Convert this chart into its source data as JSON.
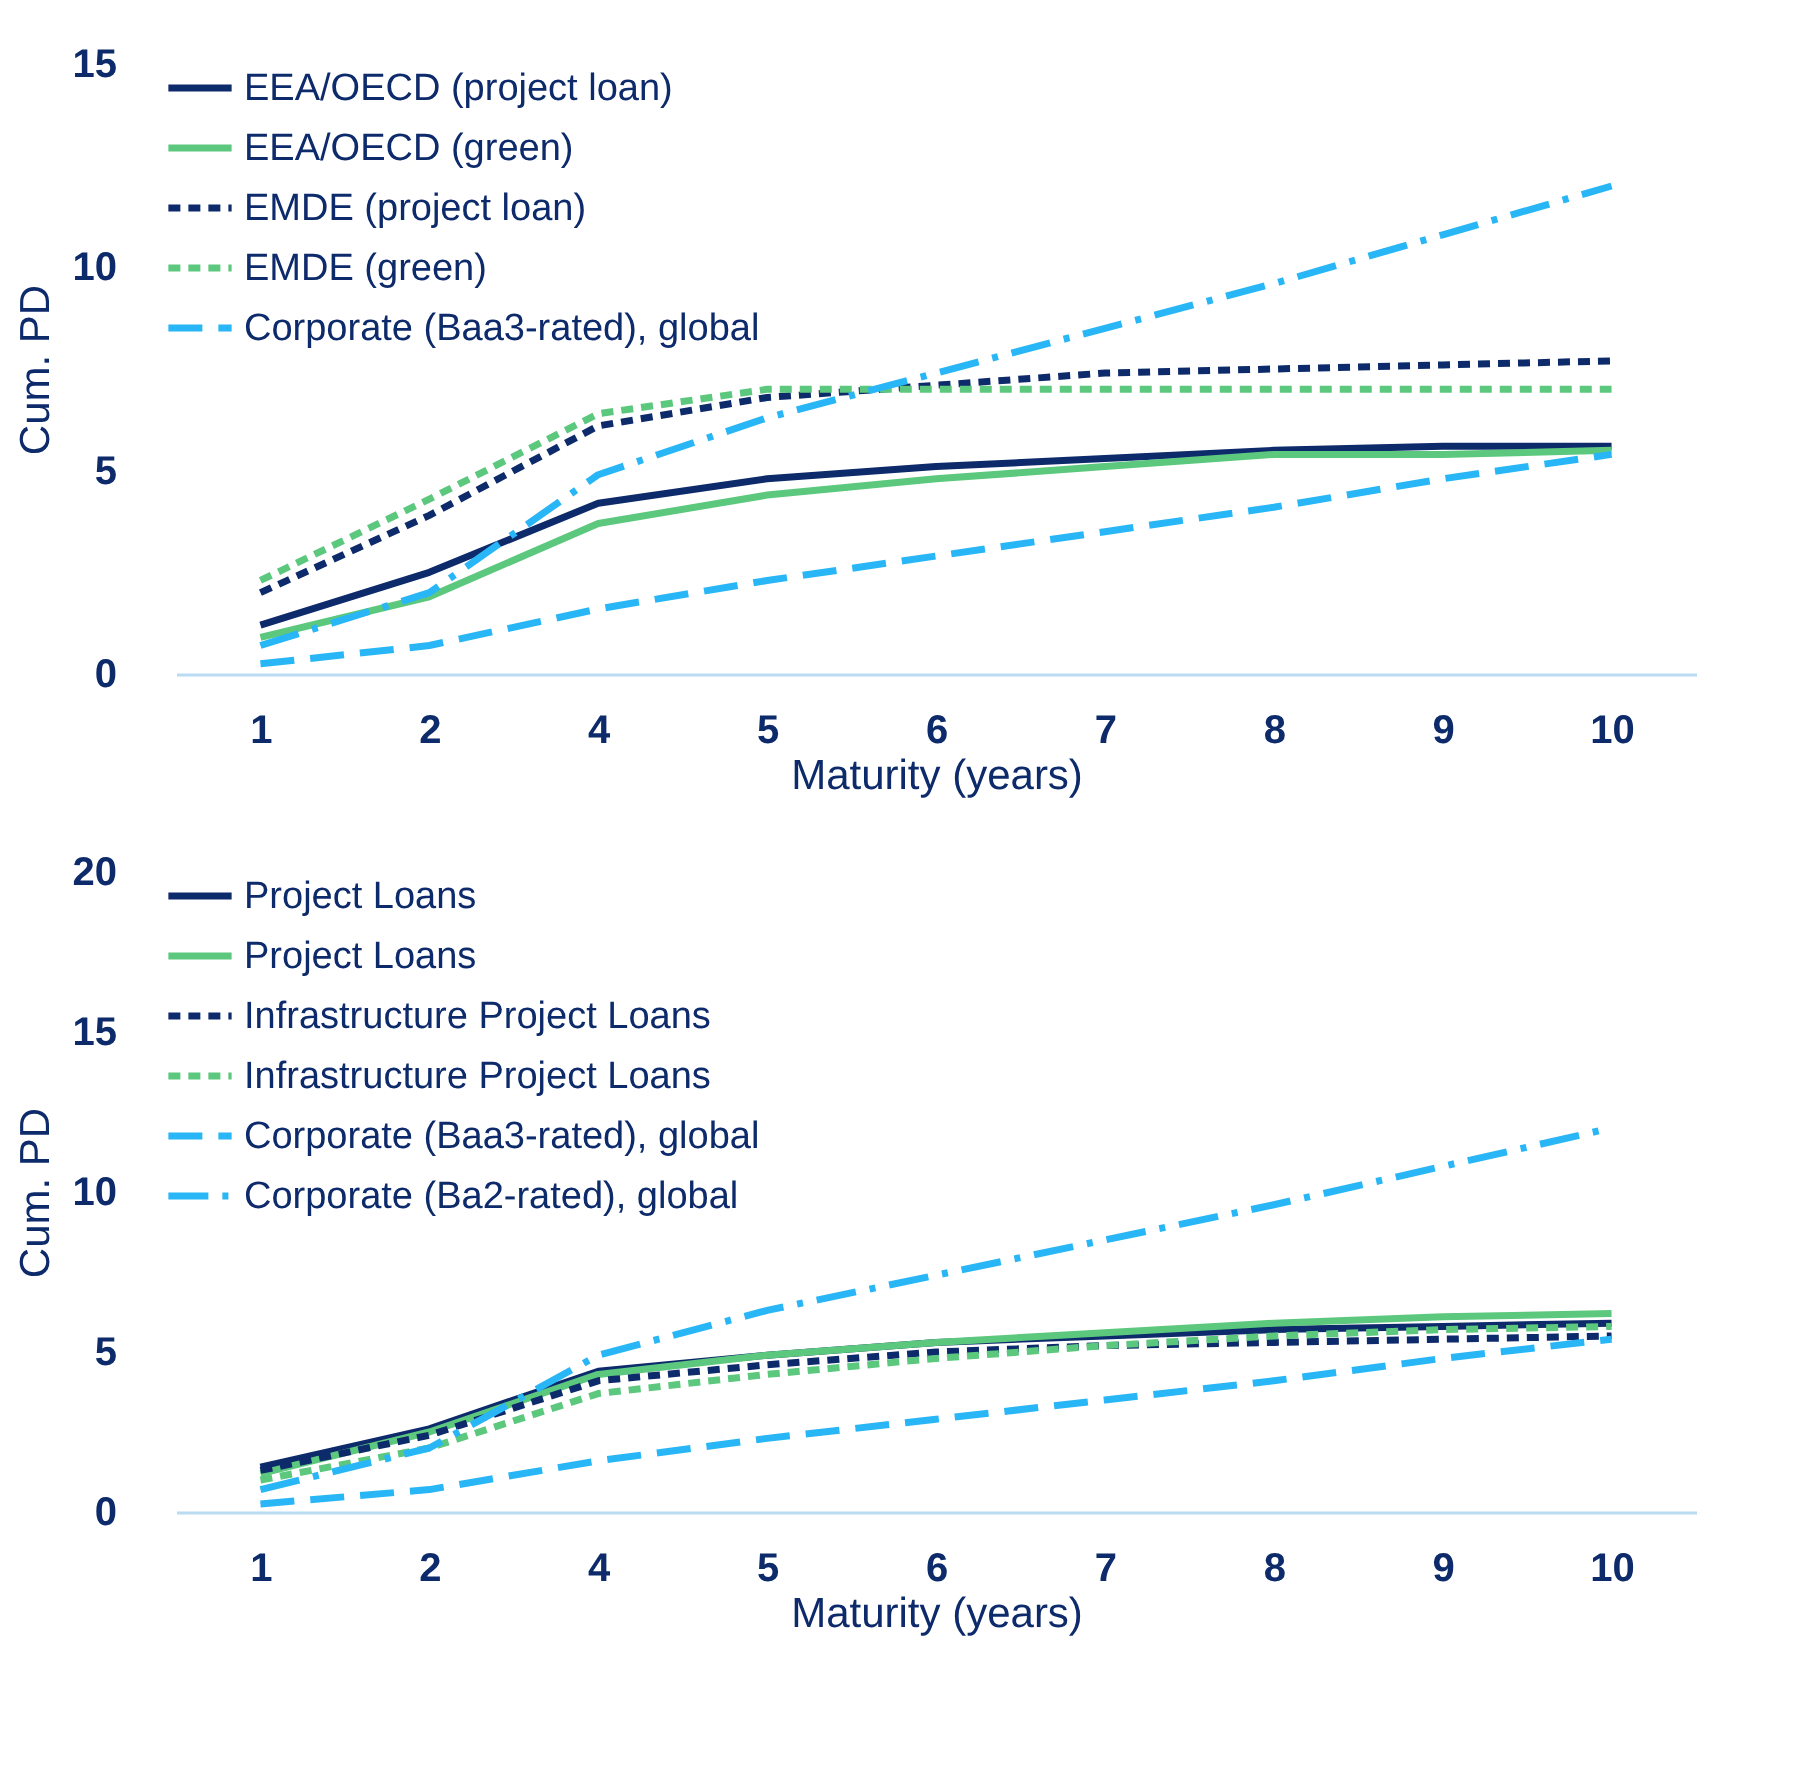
{
  "chart_data": [
    {
      "type": "line",
      "xlabel": "Maturity (years)",
      "ylabel": "Cum. PD",
      "categories": [
        "1",
        "2",
        "4",
        "5",
        "6",
        "7",
        "8",
        "9",
        "10"
      ],
      "ylim": [
        0,
        15
      ],
      "yticks": [
        0,
        5,
        10,
        15
      ],
      "grid": false,
      "legend": "top left",
      "marker": "none",
      "series": [
        {
          "name": "EEA/OECD (project loan)",
          "color": "#0d2a6b",
          "line_style": "solid",
          "values": [
            1.2,
            2.5,
            4.2,
            4.8,
            5.1,
            5.3,
            5.5,
            5.6,
            5.6
          ]
        },
        {
          "name": "EEA/OECD (green)",
          "color": "#5cc87e",
          "line_style": "solid",
          "values": [
            0.9,
            1.9,
            3.7,
            4.4,
            4.8,
            5.1,
            5.4,
            5.4,
            5.5
          ]
        },
        {
          "name": "EMDE (project loan)",
          "color": "#0d2a6b",
          "line_style": "dotted",
          "values": [
            2.0,
            3.9,
            6.1,
            6.8,
            7.1,
            7.4,
            7.5,
            7.6,
            7.7
          ]
        },
        {
          "name": "EMDE (green)",
          "color": "#5cc87e",
          "line_style": "dotted",
          "values": [
            2.3,
            4.3,
            6.4,
            7.0,
            7.0,
            7.0,
            7.0,
            7.0,
            7.0
          ]
        },
        {
          "name": "Corporate (Baa3-rated), global",
          "color": "#29b6f6",
          "line_style": "dashed",
          "values": [
            0.25,
            0.7,
            1.6,
            2.3,
            2.9,
            3.5,
            4.1,
            4.8,
            5.4
          ]
        },
        {
          "color": "#29b6f6",
          "line_style": "dashdot",
          "values": [
            0.7,
            2.0,
            4.9,
            6.3,
            7.4,
            8.5,
            9.6,
            10.8,
            12.0
          ]
        }
      ]
    },
    {
      "type": "line",
      "xlabel": "Maturity (years)",
      "ylabel": "Cum. PD",
      "categories": [
        "1",
        "2",
        "4",
        "5",
        "6",
        "7",
        "8",
        "9",
        "10"
      ],
      "ylim": [
        0,
        20
      ],
      "yticks": [
        0,
        5,
        10,
        15,
        20
      ],
      "grid": false,
      "legend": "top left",
      "marker": "none",
      "series": [
        {
          "name": "Project Loans",
          "color": "#0d2a6b",
          "line_style": "solid",
          "values": [
            1.4,
            2.6,
            4.4,
            4.9,
            5.3,
            5.5,
            5.7,
            5.8,
            5.9
          ]
        },
        {
          "name": "Project Loans",
          "color": "#5cc87e",
          "line_style": "solid",
          "values": [
            1.2,
            2.5,
            4.3,
            4.9,
            5.3,
            5.6,
            5.9,
            6.1,
            6.2
          ]
        },
        {
          "name": "Infrastructure Project Loans",
          "color": "#0d2a6b",
          "line_style": "dotted",
          "values": [
            1.3,
            2.4,
            4.1,
            4.6,
            5.0,
            5.2,
            5.3,
            5.4,
            5.5
          ]
        },
        {
          "name": "Infrastructure Project Loans",
          "color": "#5cc87e",
          "line_style": "dotted",
          "values": [
            1.0,
            2.0,
            3.7,
            4.3,
            4.8,
            5.2,
            5.5,
            5.7,
            5.8
          ]
        },
        {
          "name": "Corporate (Baa3-rated), global",
          "color": "#29b6f6",
          "line_style": "dashed",
          "values": [
            0.25,
            0.7,
            1.6,
            2.3,
            2.9,
            3.5,
            4.1,
            4.8,
            5.4
          ]
        },
        {
          "name": "Corporate (Ba2-rated), global",
          "color": "#29b6f6",
          "line_style": "dashdot",
          "values": [
            0.7,
            2.0,
            4.9,
            6.3,
            7.4,
            8.5,
            9.6,
            10.8,
            12.0
          ]
        }
      ]
    }
  ]
}
